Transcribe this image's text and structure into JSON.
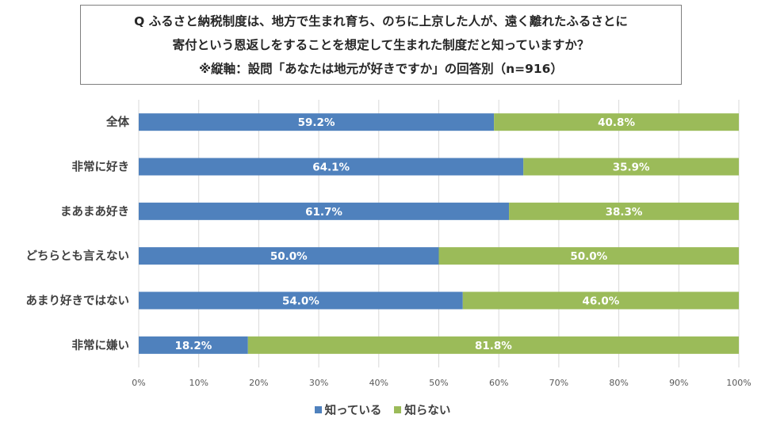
{
  "chart_data": {
    "type": "bar",
    "orientation": "horizontal",
    "stacked": true,
    "title_lines": [
      "Q ふるさと納税制度は、地方で生まれ育ち、のちに上京した人が、遠く離れたふるさとに",
      "寄付という恩返しをすることを想定して生まれた制度だと知っていますか？",
      "※縦軸：設問「あなたは地元が好きですか」の回答別（n=916）"
    ],
    "categories": [
      "全体",
      "非常に好き",
      "まあまあ好き",
      "どちらとも言えない",
      "あまり好きではない",
      "非常に嫌い"
    ],
    "series": [
      {
        "name": "知っている",
        "color": "#4f81bd",
        "values": [
          59.2,
          64.1,
          61.7,
          50.0,
          54.0,
          18.2
        ],
        "labels": [
          "59.2%",
          "64.1%",
          "61.7%",
          "50.0%",
          "54.0%",
          "18.2%"
        ]
      },
      {
        "name": "知らない",
        "color": "#9bbb59",
        "values": [
          40.8,
          35.9,
          38.3,
          50.0,
          46.0,
          81.8
        ],
        "labels": [
          "40.8%",
          "35.9%",
          "38.3%",
          "50.0%",
          "46.0%",
          "81.8%"
        ]
      }
    ],
    "xlim": [
      0,
      100
    ],
    "x_ticks": [
      "0%",
      "10%",
      "20%",
      "30%",
      "40%",
      "50%",
      "60%",
      "70%",
      "80%",
      "90%",
      "100%"
    ],
    "grid": true,
    "legend_position": "bottom"
  }
}
